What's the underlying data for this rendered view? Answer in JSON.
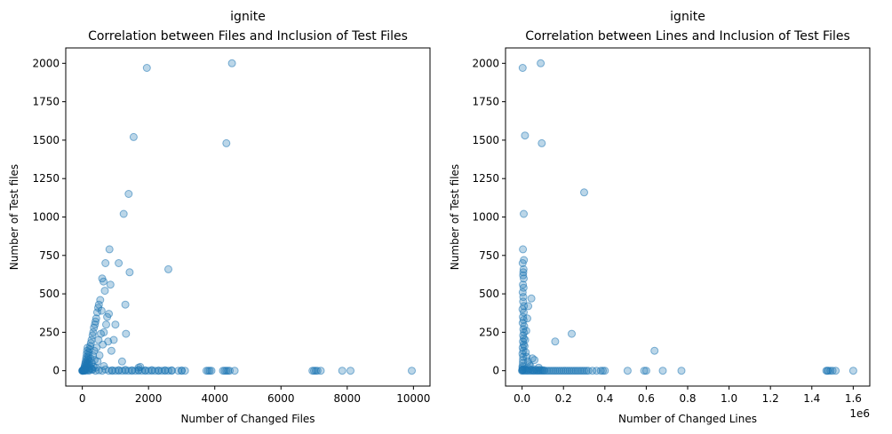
{
  "chart_data": [
    {
      "type": "scatter",
      "title": "ignite",
      "subtitle": "Correlation between Files and Inclusion of Test Files",
      "xlabel": "Number of Changed Files",
      "ylabel": "Number of Test files",
      "xlim": [
        -500,
        10500
      ],
      "ylim": [
        -100,
        2100
      ],
      "xticks": [
        0,
        2000,
        4000,
        6000,
        8000,
        10000
      ],
      "xtick_labels": [
        "0",
        "2000",
        "4000",
        "6000",
        "8000",
        "10000"
      ],
      "yticks": [
        0,
        250,
        500,
        750,
        1000,
        1250,
        1500,
        1750,
        2000
      ],
      "ytick_labels": [
        "0",
        "250",
        "500",
        "750",
        "1000",
        "1250",
        "1500",
        "1750",
        "2000"
      ],
      "offset_text": "",
      "grid": false,
      "color": "#1f77b4",
      "points": [
        [
          0,
          0
        ],
        [
          5,
          0
        ],
        [
          10,
          1
        ],
        [
          15,
          2
        ],
        [
          20,
          0
        ],
        [
          25,
          4
        ],
        [
          30,
          1
        ],
        [
          40,
          3
        ],
        [
          45,
          8
        ],
        [
          50,
          0
        ],
        [
          55,
          15
        ],
        [
          60,
          5
        ],
        [
          65,
          20
        ],
        [
          70,
          2
        ],
        [
          75,
          30
        ],
        [
          80,
          10
        ],
        [
          85,
          40
        ],
        [
          90,
          6
        ],
        [
          95,
          50
        ],
        [
          100,
          0
        ],
        [
          105,
          60
        ],
        [
          110,
          12
        ],
        [
          115,
          75
        ],
        [
          120,
          25
        ],
        [
          125,
          90
        ],
        [
          130,
          35
        ],
        [
          135,
          110
        ],
        [
          140,
          45
        ],
        [
          145,
          130
        ],
        [
          150,
          55
        ],
        [
          160,
          150
        ],
        [
          165,
          70
        ],
        [
          170,
          20
        ],
        [
          175,
          85
        ],
        [
          180,
          5
        ],
        [
          185,
          100
        ],
        [
          190,
          40
        ],
        [
          195,
          120
        ],
        [
          200,
          8
        ],
        [
          210,
          60
        ],
        [
          220,
          140
        ],
        [
          230,
          30
        ],
        [
          240,
          160
        ],
        [
          250,
          80
        ],
        [
          260,
          180
        ],
        [
          270,
          15
        ],
        [
          280,
          200
        ],
        [
          290,
          50
        ],
        [
          300,
          10
        ],
        [
          310,
          230
        ],
        [
          320,
          100
        ],
        [
          330,
          250
        ],
        [
          340,
          25
        ],
        [
          350,
          280
        ],
        [
          360,
          130
        ],
        [
          370,
          70
        ],
        [
          380,
          300
        ],
        [
          400,
          320
        ],
        [
          410,
          20
        ],
        [
          420,
          340
        ],
        [
          430,
          150
        ],
        [
          450,
          380
        ],
        [
          460,
          60
        ],
        [
          480,
          410
        ],
        [
          490,
          200
        ],
        [
          500,
          430
        ],
        [
          520,
          100
        ],
        [
          540,
          460
        ],
        [
          560,
          240
        ],
        [
          580,
          390
        ],
        [
          600,
          600
        ],
        [
          620,
          170
        ],
        [
          640,
          580
        ],
        [
          650,
          250
        ],
        [
          680,
          520
        ],
        [
          700,
          700
        ],
        [
          720,
          300
        ],
        [
          750,
          350
        ],
        [
          780,
          190
        ],
        [
          800,
          370
        ],
        [
          820,
          790
        ],
        [
          850,
          560
        ],
        [
          880,
          130
        ],
        [
          950,
          200
        ],
        [
          1000,
          300
        ],
        [
          1100,
          700
        ],
        [
          1200,
          60
        ],
        [
          1250,
          1020
        ],
        [
          1300,
          430
        ],
        [
          1320,
          240
        ],
        [
          1400,
          1150
        ],
        [
          1430,
          640
        ],
        [
          1550,
          1520
        ],
        [
          1700,
          20
        ],
        [
          1950,
          1970
        ],
        [
          2600,
          660
        ],
        [
          4350,
          1480
        ],
        [
          4520,
          2000
        ],
        [
          200,
          0
        ],
        [
          400,
          0
        ],
        [
          600,
          0
        ],
        [
          800,
          0
        ],
        [
          900,
          0
        ],
        [
          1000,
          0
        ],
        [
          1100,
          0
        ],
        [
          1200,
          0
        ],
        [
          1300,
          0
        ],
        [
          1400,
          0
        ],
        [
          1500,
          0
        ],
        [
          1600,
          0
        ],
        [
          1700,
          0
        ],
        [
          1800,
          0
        ],
        [
          1900,
          0
        ],
        [
          2000,
          0
        ],
        [
          2100,
          0
        ],
        [
          2200,
          0
        ],
        [
          2300,
          0
        ],
        [
          2400,
          0
        ],
        [
          2500,
          0
        ],
        [
          2600,
          0
        ],
        [
          2700,
          0
        ],
        [
          2900,
          0
        ],
        [
          3000,
          0
        ],
        [
          3100,
          0
        ],
        [
          3750,
          0
        ],
        [
          3800,
          0
        ],
        [
          3850,
          0
        ],
        [
          3900,
          0
        ],
        [
          4250,
          0
        ],
        [
          4300,
          0
        ],
        [
          4350,
          0
        ],
        [
          4400,
          0
        ],
        [
          4450,
          0
        ],
        [
          4600,
          0
        ],
        [
          6950,
          0
        ],
        [
          7000,
          0
        ],
        [
          7050,
          0
        ],
        [
          7100,
          0
        ],
        [
          7200,
          0
        ],
        [
          7850,
          0
        ],
        [
          8100,
          0
        ],
        [
          9950,
          0
        ],
        [
          300,
          5
        ],
        [
          500,
          3
        ],
        [
          700,
          8
        ],
        [
          900,
          2
        ],
        [
          1100,
          4
        ],
        [
          1300,
          6
        ],
        [
          1500,
          3
        ],
        [
          1700,
          5
        ],
        [
          1900,
          2
        ],
        [
          2100,
          4
        ],
        [
          2300,
          1
        ],
        [
          2500,
          3
        ],
        [
          2700,
          2
        ],
        [
          3000,
          1
        ],
        [
          650,
          30
        ],
        [
          1750,
          25
        ]
      ]
    },
    {
      "type": "scatter",
      "title": "ignite",
      "subtitle": "Correlation between Lines and Inclusion of Test Files",
      "xlabel": "Number of Changed Lines",
      "ylabel": "Number of Test files",
      "xlim": [
        -80000,
        1680000
      ],
      "ylim": [
        -100,
        2100
      ],
      "xticks": [
        0,
        200000,
        400000,
        600000,
        800000,
        1000000,
        1200000,
        1400000,
        1600000
      ],
      "xtick_labels": [
        "0.0",
        "0.2",
        "0.4",
        "0.6",
        "0.8",
        "1.0",
        "1.2",
        "1.4",
        "1.6"
      ],
      "yticks": [
        0,
        250,
        500,
        750,
        1000,
        1250,
        1500,
        1750,
        2000
      ],
      "ytick_labels": [
        "0",
        "250",
        "500",
        "750",
        "1000",
        "1250",
        "1500",
        "1750",
        "2000"
      ],
      "offset_text": "1e6",
      "grid": false,
      "color": "#1f77b4",
      "points": [
        [
          0,
          0
        ],
        [
          1000,
          2
        ],
        [
          2000,
          5
        ],
        [
          3000,
          10
        ],
        [
          1500,
          20
        ],
        [
          2500,
          30
        ],
        [
          3500,
          50
        ],
        [
          4000,
          70
        ],
        [
          5000,
          90
        ],
        [
          2000,
          110
        ],
        [
          6000,
          130
        ],
        [
          3000,
          150
        ],
        [
          7000,
          170
        ],
        [
          4000,
          190
        ],
        [
          8000,
          210
        ],
        [
          5000,
          230
        ],
        [
          9000,
          250
        ],
        [
          6000,
          270
        ],
        [
          10000,
          290
        ],
        [
          3000,
          310
        ],
        [
          7000,
          330
        ],
        [
          4000,
          350
        ],
        [
          8000,
          380
        ],
        [
          2000,
          400
        ],
        [
          9000,
          420
        ],
        [
          5000,
          450
        ],
        [
          6000,
          480
        ],
        [
          3000,
          510
        ],
        [
          7000,
          540
        ],
        [
          4000,
          560
        ],
        [
          8000,
          600
        ],
        [
          5000,
          620
        ],
        [
          6000,
          640
        ],
        [
          7000,
          660
        ],
        [
          3000,
          700
        ],
        [
          9000,
          720
        ],
        [
          4000,
          790
        ],
        [
          8000,
          1020
        ],
        [
          14000,
          1530
        ],
        [
          3000,
          1970
        ],
        [
          90000,
          2000
        ],
        [
          95000,
          1480
        ],
        [
          300000,
          1160
        ],
        [
          45000,
          470
        ],
        [
          30000,
          420
        ],
        [
          25000,
          340
        ],
        [
          20000,
          260
        ],
        [
          15000,
          200
        ],
        [
          12000,
          160
        ],
        [
          18000,
          120
        ],
        [
          22000,
          90
        ],
        [
          28000,
          60
        ],
        [
          35000,
          40
        ],
        [
          40000,
          30
        ],
        [
          50000,
          80
        ],
        [
          60000,
          70
        ],
        [
          80000,
          20
        ],
        [
          160000,
          190
        ],
        [
          240000,
          240
        ],
        [
          640000,
          130
        ],
        [
          10000,
          0
        ],
        [
          20000,
          0
        ],
        [
          30000,
          0
        ],
        [
          40000,
          0
        ],
        [
          50000,
          0
        ],
        [
          60000,
          0
        ],
        [
          70000,
          0
        ],
        [
          80000,
          0
        ],
        [
          90000,
          0
        ],
        [
          100000,
          0
        ],
        [
          110000,
          0
        ],
        [
          120000,
          0
        ],
        [
          130000,
          0
        ],
        [
          140000,
          0
        ],
        [
          150000,
          0
        ],
        [
          160000,
          0
        ],
        [
          170000,
          0
        ],
        [
          180000,
          0
        ],
        [
          190000,
          0
        ],
        [
          200000,
          0
        ],
        [
          210000,
          0
        ],
        [
          220000,
          0
        ],
        [
          230000,
          0
        ],
        [
          240000,
          0
        ],
        [
          250000,
          0
        ],
        [
          260000,
          0
        ],
        [
          270000,
          0
        ],
        [
          280000,
          0
        ],
        [
          290000,
          0
        ],
        [
          300000,
          0
        ],
        [
          310000,
          0
        ],
        [
          320000,
          0
        ],
        [
          340000,
          0
        ],
        [
          360000,
          0
        ],
        [
          380000,
          0
        ],
        [
          390000,
          0
        ],
        [
          400000,
          0
        ],
        [
          510000,
          0
        ],
        [
          590000,
          0
        ],
        [
          600000,
          0
        ],
        [
          680000,
          0
        ],
        [
          770000,
          0
        ],
        [
          1470000,
          0
        ],
        [
          1475000,
          0
        ],
        [
          1480000,
          0
        ],
        [
          1490000,
          0
        ],
        [
          1500000,
          0
        ],
        [
          1515000,
          0
        ],
        [
          1600000,
          0
        ],
        [
          5000,
          5
        ],
        [
          15000,
          8
        ],
        [
          25000,
          4
        ],
        [
          35000,
          10
        ],
        [
          45000,
          6
        ],
        [
          55000,
          3
        ],
        [
          65000,
          7
        ],
        [
          75000,
          2
        ],
        [
          85000,
          5
        ],
        [
          95000,
          4
        ],
        [
          105000,
          3
        ]
      ]
    }
  ]
}
